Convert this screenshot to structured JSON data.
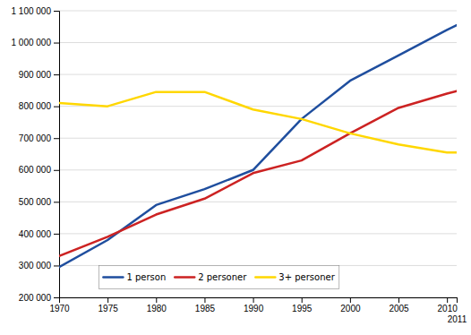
{
  "chart_data": {
    "type": "line",
    "x": [
      1970,
      1975,
      1980,
      1985,
      1990,
      1995,
      2000,
      2005,
      2010,
      2011
    ],
    "series": [
      {
        "name": "1 person",
        "color": "#1F4E9E",
        "values": [
          295000,
          380000,
          490000,
          540000,
          600000,
          760000,
          880000,
          960000,
          1040000,
          1055000
        ]
      },
      {
        "name": "2 personer",
        "color": "#CC2222",
        "values": [
          330000,
          390000,
          460000,
          510000,
          590000,
          630000,
          715000,
          795000,
          840000,
          848000
        ]
      },
      {
        "name": "3+ personer",
        "color": "#FFD700",
        "values": [
          810000,
          800000,
          845000,
          845000,
          790000,
          760000,
          715000,
          680000,
          655000,
          655000
        ]
      }
    ],
    "xlim": [
      1970,
      2011
    ],
    "xticks": [
      1970,
      1975,
      1980,
      1985,
      1990,
      1995,
      2000,
      2005,
      2010,
      2011
    ],
    "ylim": [
      200000,
      1100000
    ],
    "yticks": [
      {
        "value": 200000,
        "label": "200 000"
      },
      {
        "value": 300000,
        "label": "300 000"
      },
      {
        "value": 400000,
        "label": "400 000"
      },
      {
        "value": 500000,
        "label": "500 000"
      },
      {
        "value": 600000,
        "label": "600 000"
      },
      {
        "value": 700000,
        "label": "700 000"
      },
      {
        "value": 800000,
        "label": "800 000"
      },
      {
        "value": 900000,
        "label": "900 000"
      },
      {
        "value": 1000000,
        "label": "1 000 000"
      },
      {
        "value": 1100000,
        "label": "1 100 000"
      }
    ],
    "grid": true,
    "legend": "lower left"
  }
}
